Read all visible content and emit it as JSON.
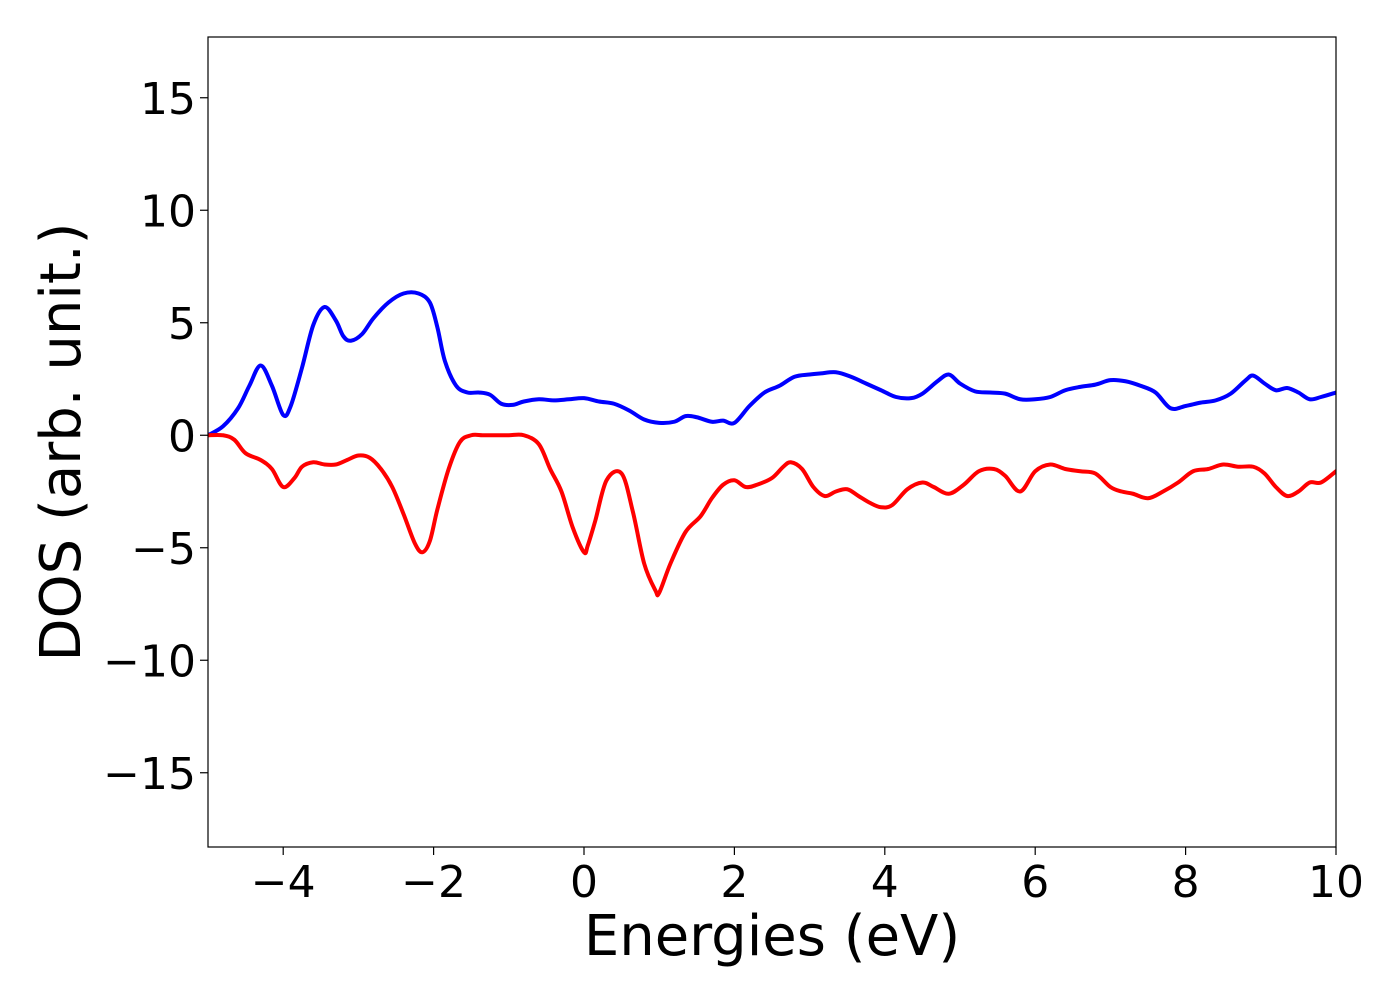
{
  "chart_data": {
    "type": "line",
    "title": "",
    "xlabel": "Energies (eV)",
    "ylabel": "DOS (arb. unit.)",
    "xlim": [
      -5,
      10
    ],
    "ylim": [
      -18.3,
      17.7
    ],
    "xticks": [
      -4,
      -2,
      0,
      2,
      4,
      6,
      8,
      10
    ],
    "xtick_labels": [
      "−4",
      "−2",
      "0",
      "2",
      "4",
      "6",
      "8",
      "10"
    ],
    "yticks": [
      15,
      10,
      5,
      0,
      -5,
      -10,
      -15
    ],
    "ytick_labels": [
      "15",
      "10",
      "5",
      "0",
      "−5",
      "−10",
      "−15"
    ],
    "grid": false,
    "legend": "none",
    "series": [
      {
        "color": "#0000ff",
        "x": [
          -5.0,
          -4.8,
          -4.6,
          -4.45,
          -4.3,
          -4.15,
          -4.0,
          -3.9,
          -3.75,
          -3.6,
          -3.45,
          -3.3,
          -3.2,
          -3.1,
          -2.95,
          -2.8,
          -2.6,
          -2.4,
          -2.2,
          -2.05,
          -1.95,
          -1.85,
          -1.7,
          -1.55,
          -1.4,
          -1.25,
          -1.1,
          -0.95,
          -0.8,
          -0.6,
          -0.4,
          -0.2,
          0.0,
          0.2,
          0.4,
          0.6,
          0.8,
          1.0,
          1.2,
          1.35,
          1.5,
          1.7,
          1.85,
          2.0,
          2.2,
          2.4,
          2.6,
          2.8,
          3.0,
          3.15,
          3.35,
          3.55,
          3.75,
          3.95,
          4.15,
          4.35,
          4.5,
          4.7,
          4.85,
          5.0,
          5.2,
          5.4,
          5.6,
          5.8,
          6.0,
          6.2,
          6.4,
          6.6,
          6.8,
          7.0,
          7.2,
          7.4,
          7.6,
          7.8,
          8.0,
          8.2,
          8.4,
          8.6,
          8.8,
          8.9,
          9.05,
          9.2,
          9.35,
          9.5,
          9.65,
          9.8,
          10.0
        ],
        "y": [
          0.0,
          0.4,
          1.2,
          2.2,
          3.1,
          2.2,
          0.9,
          1.3,
          3.0,
          4.9,
          5.7,
          5.1,
          4.4,
          4.2,
          4.5,
          5.2,
          5.9,
          6.3,
          6.3,
          5.9,
          4.8,
          3.3,
          2.2,
          1.9,
          1.9,
          1.8,
          1.4,
          1.35,
          1.5,
          1.6,
          1.55,
          1.6,
          1.65,
          1.5,
          1.4,
          1.1,
          0.7,
          0.55,
          0.6,
          0.85,
          0.8,
          0.6,
          0.65,
          0.55,
          1.3,
          1.9,
          2.2,
          2.6,
          2.7,
          2.75,
          2.8,
          2.6,
          2.3,
          2.0,
          1.7,
          1.65,
          1.85,
          2.4,
          2.7,
          2.3,
          1.95,
          1.9,
          1.85,
          1.6,
          1.6,
          1.7,
          2.0,
          2.15,
          2.25,
          2.45,
          2.4,
          2.2,
          1.9,
          1.2,
          1.3,
          1.45,
          1.55,
          1.85,
          2.45,
          2.65,
          2.3,
          2.0,
          2.1,
          1.9,
          1.6,
          1.7,
          1.9
        ]
      },
      {
        "color": "#ff0000",
        "x": [
          -5.0,
          -4.8,
          -4.65,
          -4.5,
          -4.3,
          -4.15,
          -4.0,
          -3.85,
          -3.75,
          -3.6,
          -3.45,
          -3.3,
          -3.15,
          -3.0,
          -2.85,
          -2.7,
          -2.55,
          -2.4,
          -2.25,
          -2.15,
          -2.05,
          -1.95,
          -1.8,
          -1.65,
          -1.5,
          -1.35,
          -1.2,
          -1.0,
          -0.8,
          -0.6,
          -0.45,
          -0.3,
          -0.15,
          0.0,
          0.05,
          0.15,
          0.3,
          0.5,
          0.65,
          0.8,
          0.95,
          1.0,
          1.15,
          1.35,
          1.55,
          1.7,
          1.85,
          2.0,
          2.15,
          2.3,
          2.5,
          2.65,
          2.75,
          2.9,
          3.05,
          3.2,
          3.35,
          3.5,
          3.65,
          3.8,
          3.95,
          4.1,
          4.3,
          4.5,
          4.65,
          4.85,
          5.05,
          5.25,
          5.45,
          5.6,
          5.8,
          6.0,
          6.2,
          6.4,
          6.6,
          6.8,
          7.0,
          7.15,
          7.3,
          7.5,
          7.7,
          7.9,
          8.1,
          8.3,
          8.5,
          8.7,
          8.9,
          9.05,
          9.2,
          9.35,
          9.5,
          9.65,
          9.8,
          10.0
        ],
        "y": [
          0.0,
          0.0,
          -0.2,
          -0.8,
          -1.1,
          -1.5,
          -2.3,
          -1.9,
          -1.4,
          -1.2,
          -1.3,
          -1.3,
          -1.1,
          -0.9,
          -1.0,
          -1.5,
          -2.3,
          -3.5,
          -4.8,
          -5.2,
          -4.7,
          -3.3,
          -1.5,
          -0.3,
          0.0,
          0.0,
          0.0,
          0.0,
          0.0,
          -0.4,
          -1.5,
          -2.5,
          -4.1,
          -5.2,
          -4.9,
          -3.8,
          -2.0,
          -1.7,
          -3.4,
          -5.7,
          -6.9,
          -7.0,
          -5.7,
          -4.3,
          -3.6,
          -2.8,
          -2.2,
          -2.0,
          -2.3,
          -2.2,
          -1.9,
          -1.4,
          -1.2,
          -1.5,
          -2.3,
          -2.7,
          -2.5,
          -2.4,
          -2.7,
          -3.0,
          -3.2,
          -3.1,
          -2.4,
          -2.1,
          -2.3,
          -2.6,
          -2.2,
          -1.6,
          -1.5,
          -1.8,
          -2.5,
          -1.6,
          -1.3,
          -1.5,
          -1.6,
          -1.7,
          -2.3,
          -2.5,
          -2.6,
          -2.8,
          -2.5,
          -2.1,
          -1.6,
          -1.5,
          -1.3,
          -1.4,
          -1.4,
          -1.7,
          -2.3,
          -2.7,
          -2.5,
          -2.1,
          -2.1,
          -1.6
        ]
      }
    ]
  }
}
